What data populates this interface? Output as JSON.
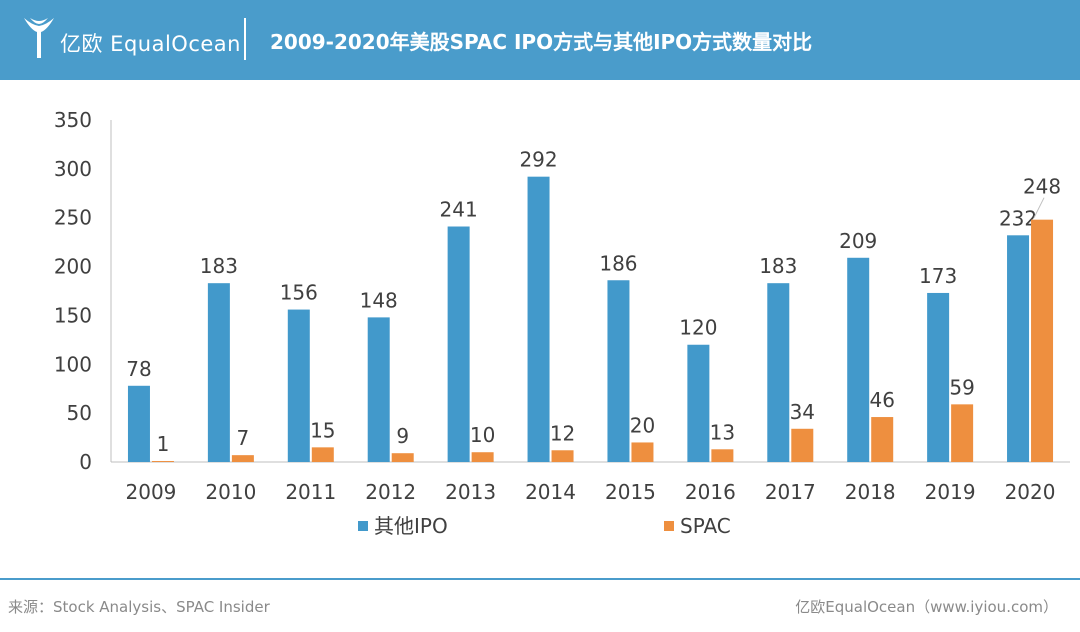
{
  "header": {
    "brand": "亿欧 EqualOcean",
    "title": "2009-2020年美股SPAC IPO方式与其他IPO方式数量对比"
  },
  "colors": {
    "header_bg": "#4a9ccb",
    "other_ipo": "#4299cb",
    "spac": "#ee8f3f",
    "axis": "#bfbfbf"
  },
  "chart_data": {
    "type": "bar",
    "title": "2009-2020年美股SPAC IPO方式与其他IPO方式数量对比",
    "categories": [
      "2009",
      "2010",
      "2011",
      "2012",
      "2013",
      "2014",
      "2015",
      "2016",
      "2017",
      "2018",
      "2019",
      "2020"
    ],
    "series": [
      {
        "name": "其他IPO",
        "color": "#4299cb",
        "values": [
          78,
          183,
          156,
          148,
          241,
          292,
          186,
          120,
          183,
          209,
          173,
          232
        ]
      },
      {
        "name": "SPAC",
        "color": "#ee8f3f",
        "values": [
          1,
          7,
          15,
          9,
          10,
          12,
          20,
          13,
          34,
          46,
          59,
          248
        ]
      }
    ],
    "yticks": [
      0,
      50,
      100,
      150,
      200,
      250,
      300,
      350
    ],
    "ylim": [
      0,
      350
    ],
    "xlabel": "",
    "ylabel": "",
    "grid": false,
    "legend": "bottom"
  },
  "footer": {
    "source": "来源：Stock Analysis、SPAC Insider",
    "site": "亿欧EqualOcean（www.iyiou.com）"
  }
}
